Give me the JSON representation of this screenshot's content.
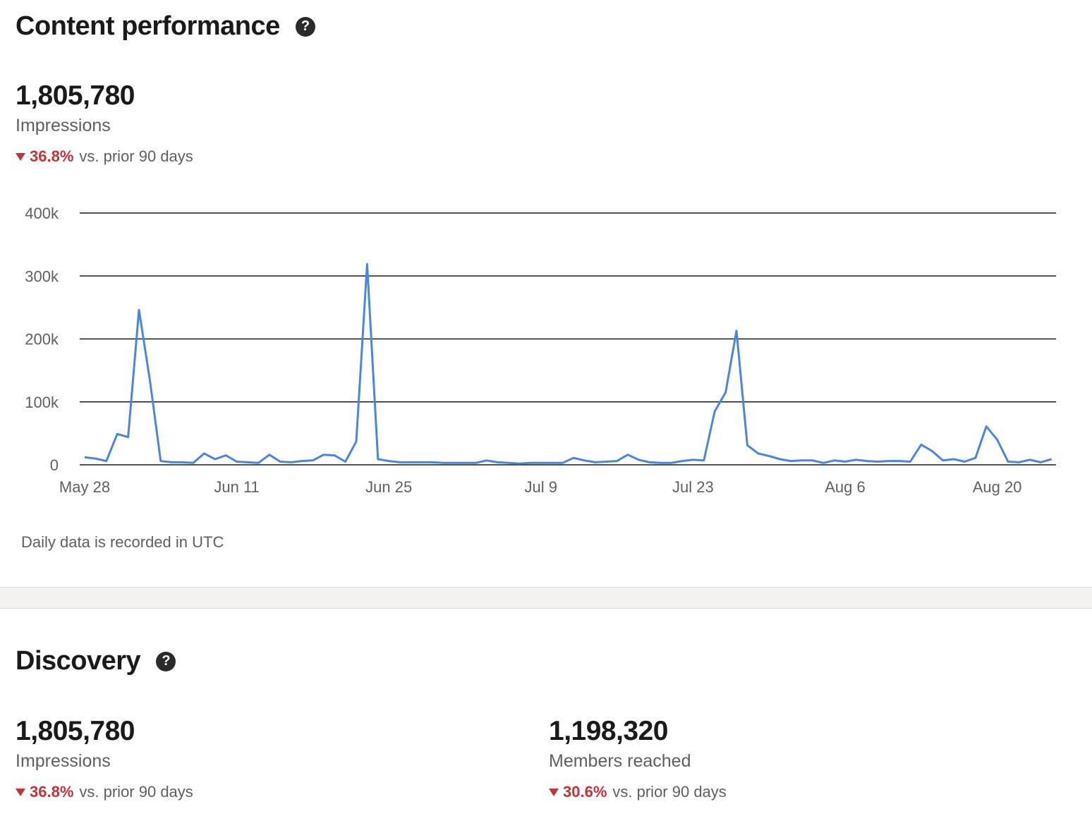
{
  "content_performance": {
    "title": "Content performance",
    "help_icon": "?",
    "impressions": {
      "value": "1,805,780",
      "label": "Impressions",
      "change_pct": "36.8%",
      "change_text": "vs. prior 90 days"
    },
    "footnote": "Daily data is recorded in UTC"
  },
  "discovery": {
    "title": "Discovery",
    "help_icon": "?",
    "impressions": {
      "value": "1,805,780",
      "label": "Impressions",
      "change_pct": "36.8%",
      "change_text": "vs. prior 90 days"
    },
    "members_reached": {
      "value": "1,198,320",
      "label": "Members reached",
      "change_pct": "30.6%",
      "change_text": "vs. prior 90 days"
    }
  },
  "colors": {
    "line": "#4a86dc",
    "negative": "#c6323a",
    "gridline": "#1a1a1a"
  },
  "chart_data": {
    "type": "line",
    "title": "",
    "xlabel": "",
    "ylabel": "",
    "ylim": [
      0,
      400000
    ],
    "y_ticks": [
      0,
      100000,
      200000,
      300000,
      400000
    ],
    "y_tick_labels": [
      "0",
      "100k",
      "200k",
      "300k",
      "400k"
    ],
    "x_tick_labels": [
      "May 28",
      "Jun 11",
      "Jun 25",
      "Jul 9",
      "Jul 23",
      "Aug 6",
      "Aug 20"
    ],
    "x_tick_day_index": [
      0,
      14,
      28,
      42,
      56,
      70,
      84
    ],
    "grid": true,
    "series": [
      {
        "values": [
          12000,
          10000,
          6000,
          49000,
          44000,
          246000,
          135000,
          6000,
          4000,
          4000,
          3000,
          18000,
          9000,
          15000,
          5000,
          4000,
          3000,
          16000,
          5000,
          4000,
          6000,
          7000,
          16000,
          15000,
          5000,
          37000,
          319000,
          9000,
          6000,
          4000,
          4000,
          4000,
          4000,
          3000,
          3000,
          3000,
          3000,
          7000,
          4000,
          3000,
          2000,
          3000,
          3000,
          3000,
          3000,
          11000,
          7000,
          4000,
          5000,
          6000,
          16000,
          8000,
          4000,
          3000,
          3000,
          6000,
          8000,
          7000,
          85000,
          115000,
          213000,
          31000,
          18000,
          14000,
          9000,
          6000,
          7000,
          7000,
          3000,
          7000,
          5000,
          8000,
          6000,
          5000,
          6000,
          6000,
          5000,
          32000,
          22000,
          7000,
          9000,
          5000,
          11000,
          61000,
          40000,
          5000,
          4000,
          8000,
          4000,
          9000
        ]
      }
    ]
  }
}
